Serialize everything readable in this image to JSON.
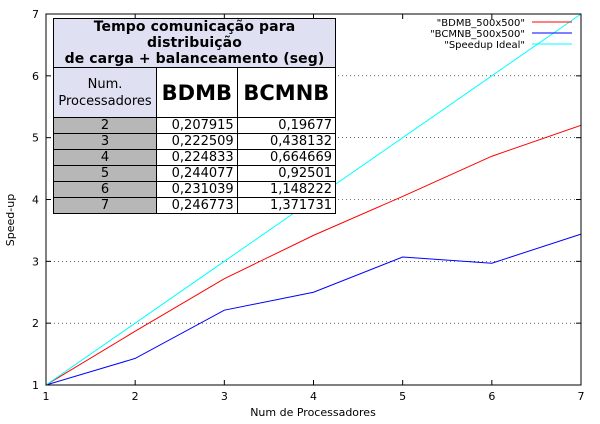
{
  "chart_data": {
    "type": "line",
    "xlabel": "Num de Processadores",
    "ylabel": "Speed-up",
    "xlim": [
      1,
      7
    ],
    "ylim": [
      1,
      7
    ],
    "x": [
      1,
      2,
      3,
      4,
      5,
      6,
      7
    ],
    "xticks": [
      "1",
      "2",
      "3",
      "4",
      "5",
      "6",
      "7"
    ],
    "yticks": [
      "1",
      "2",
      "3",
      "4",
      "5",
      "6",
      "7"
    ],
    "grid": "horizontal dotted",
    "legend_position": "top-right",
    "series": [
      {
        "name": "\"BDMB_500x500\"",
        "color": "#ff0000",
        "values": [
          1.0,
          1.87,
          2.72,
          3.42,
          4.05,
          4.7,
          5.2
        ]
      },
      {
        "name": "\"BCMNB_500x500\"",
        "color": "#0000ff",
        "values": [
          1.0,
          1.43,
          2.21,
          2.5,
          3.07,
          2.97,
          3.44
        ]
      },
      {
        "name": "\"Speedup Ideal\"",
        "color": "#00ffff",
        "values": [
          1,
          2,
          3,
          4,
          5,
          6,
          7
        ]
      }
    ]
  },
  "inset_table": {
    "title_line1": "Tempo comunicação para distribuição",
    "title_line2": "de carga + balanceamento (seg)",
    "header_label_line1": "Num.",
    "header_label_line2": "Processadores",
    "columns": [
      "BDMB",
      "BCMNB"
    ],
    "rows": [
      [
        "2",
        "0,207915",
        "0,19677"
      ],
      [
        "3",
        "0,222509",
        "0,438132"
      ],
      [
        "4",
        "0,224833",
        "0,664669"
      ],
      [
        "5",
        "0,244077",
        "0,92501"
      ],
      [
        "6",
        "0,231039",
        "1,148222"
      ],
      [
        "7",
        "0,246773",
        "1,371731"
      ]
    ]
  }
}
